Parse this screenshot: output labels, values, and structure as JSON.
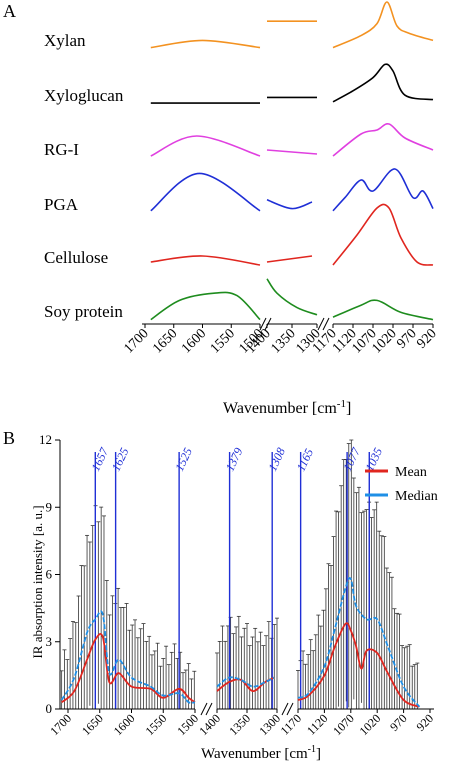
{
  "panel_a": {
    "label": "A",
    "xlabel": "Wavenumber [cm",
    "xlabel_sup": "-1",
    "xlabel_end": "]",
    "ticks_seg1": [
      "1700",
      "1650",
      "1600",
      "1550",
      "1500"
    ],
    "ticks_seg2": [
      "1400",
      "1350",
      "1300"
    ],
    "ticks_seg3": [
      "1170",
      "1120",
      "1070",
      "1020",
      "970",
      "920"
    ]
  },
  "panel_b": {
    "label": "B",
    "xlabel": "Wavenumber [cm",
    "xlabel_sup": "-1",
    "xlabel_end": "]",
    "ylabel": "IR absorption intensity [a. u.]",
    "yticks": [
      "0",
      "3",
      "6",
      "9",
      "12"
    ],
    "ticks_seg1": [
      "1700",
      "1650",
      "1600",
      "1550",
      "1500"
    ],
    "ticks_seg2": [
      "1400",
      "1350",
      "1300"
    ],
    "ticks_seg3": [
      "1170",
      "1120",
      "1070",
      "1020",
      "970",
      "920"
    ],
    "peak_labels": [
      "1657",
      "1625",
      "1525",
      "1379",
      "1308",
      "1165",
      "1077",
      "1035"
    ],
    "legend": [
      "Mean",
      "Median"
    ]
  },
  "colors": {
    "xylan": "#f39221",
    "xyloglucan": "#000000",
    "rg1": "#e040e0",
    "pga": "#1f2fd6",
    "cellulose": "#e0261f",
    "soy": "#1e8c1e",
    "mean": "#e0261f",
    "median": "#1f8fe6",
    "peak_line": "#1f2fd6"
  },
  "chart_data": [
    {
      "type": "line",
      "title": "",
      "xlabel": "Wavenumber [cm-1]",
      "ylabel": "",
      "x_segments": [
        [
          1700,
          1500
        ],
        [
          1400,
          1300
        ],
        [
          1170,
          920
        ]
      ],
      "series": [
        {
          "name": "Xylan",
          "points": [
            [
              1690,
              0.05
            ],
            [
              1600,
              0.2
            ],
            [
              1500,
              0.05
            ],
            [
              1400,
              0.6
            ],
            [
              1300,
              0.6
            ],
            [
              1170,
              0.05
            ],
            [
              1100,
              0.3
            ],
            [
              1060,
              0.55
            ],
            [
              1035,
              1.0
            ],
            [
              1010,
              0.5
            ],
            [
              980,
              0.35
            ],
            [
              920,
              0.2
            ]
          ]
        },
        {
          "name": "Xyloglucan",
          "points": [
            [
              1690,
              0.02
            ],
            [
              1600,
              0.02
            ],
            [
              1500,
              0.02
            ],
            [
              1400,
              0.15
            ],
            [
              1300,
              0.15
            ],
            [
              1170,
              0.05
            ],
            [
              1120,
              0.3
            ],
            [
              1070,
              0.6
            ],
            [
              1040,
              0.9
            ],
            [
              1020,
              0.75
            ],
            [
              990,
              0.2
            ],
            [
              920,
              0.1
            ]
          ]
        },
        {
          "name": "RG-I",
          "points": [
            [
              1690,
              0.05
            ],
            [
              1610,
              0.55
            ],
            [
              1500,
              0.05
            ],
            [
              1400,
              0.2
            ],
            [
              1300,
              0.1
            ],
            [
              1170,
              0.05
            ],
            [
              1100,
              0.6
            ],
            [
              1060,
              0.7
            ],
            [
              1030,
              0.85
            ],
            [
              990,
              0.5
            ],
            [
              920,
              0.2
            ]
          ]
        },
        {
          "name": "PGA",
          "points": [
            [
              1690,
              0.05
            ],
            [
              1605,
              0.9
            ],
            [
              1500,
              0.05
            ],
            [
              1400,
              0.3
            ],
            [
              1350,
              0.1
            ],
            [
              1310,
              0.25
            ],
            [
              1170,
              0.05
            ],
            [
              1140,
              0.35
            ],
            [
              1100,
              0.75
            ],
            [
              1070,
              0.5
            ],
            [
              1015,
              1.0
            ],
            [
              970,
              0.35
            ],
            [
              945,
              0.5
            ],
            [
              920,
              0.1
            ]
          ]
        },
        {
          "name": "Cellulose",
          "points": [
            [
              1690,
              0.1
            ],
            [
              1600,
              0.2
            ],
            [
              1500,
              0.05
            ],
            [
              1400,
              0.1
            ],
            [
              1310,
              0.2
            ],
            [
              1170,
              0.05
            ],
            [
              1110,
              0.55
            ],
            [
              1060,
              1.0
            ],
            [
              1030,
              1.0
            ],
            [
              1000,
              0.5
            ],
            [
              960,
              0.1
            ],
            [
              920,
              0.05
            ]
          ]
        },
        {
          "name": "Soy protein",
          "points": [
            [
              1690,
              0.05
            ],
            [
              1640,
              0.45
            ],
            [
              1580,
              0.6
            ],
            [
              1540,
              0.55
            ],
            [
              1500,
              0.05
            ],
            [
              1400,
              0.9
            ],
            [
              1380,
              0.6
            ],
            [
              1340,
              0.3
            ],
            [
              1300,
              0.15
            ],
            [
              1170,
              0.1
            ],
            [
              1100,
              0.35
            ],
            [
              1060,
              0.45
            ],
            [
              1000,
              0.2
            ],
            [
              920,
              0.05
            ]
          ]
        }
      ]
    },
    {
      "type": "line",
      "title": "",
      "xlabel": "Wavenumber [cm-1]",
      "ylabel": "IR absorption intensity [a. u.]",
      "ylim": [
        0,
        12
      ],
      "x_segments": [
        [
          1700,
          1500
        ],
        [
          1400,
          1300
        ],
        [
          1170,
          920
        ]
      ],
      "peak_lines": [
        1657,
        1625,
        1525,
        1379,
        1308,
        1165,
        1077,
        1035
      ],
      "series": [
        {
          "name": "Mean",
          "points": [
            [
              1710,
              0.3
            ],
            [
              1690,
              0.8
            ],
            [
              1670,
              2.2
            ],
            [
              1657,
              3.1
            ],
            [
              1645,
              3.2
            ],
            [
              1635,
              1.2
            ],
            [
              1620,
              1.6
            ],
            [
              1600,
              1.0
            ],
            [
              1570,
              0.9
            ],
            [
              1550,
              0.5
            ],
            [
              1525,
              0.9
            ],
            [
              1510,
              0.5
            ],
            [
              1500,
              0.3
            ],
            [
              1400,
              0.8
            ],
            [
              1380,
              1.2
            ],
            [
              1360,
              1.3
            ],
            [
              1340,
              0.8
            ],
            [
              1320,
              1.2
            ],
            [
              1305,
              1.4
            ],
            [
              1170,
              0.4
            ],
            [
              1150,
              0.6
            ],
            [
              1120,
              1.5
            ],
            [
              1100,
              2.8
            ],
            [
              1080,
              3.8
            ],
            [
              1070,
              3.5
            ],
            [
              1060,
              2.8
            ],
            [
              1050,
              1.8
            ],
            [
              1040,
              2.6
            ],
            [
              1020,
              2.5
            ],
            [
              1000,
              1.6
            ],
            [
              970,
              0.4
            ],
            [
              940,
              0.1
            ]
          ]
        },
        {
          "name": "Median",
          "points": [
            [
              1710,
              0.4
            ],
            [
              1690,
              1.4
            ],
            [
              1670,
              3.4
            ],
            [
              1657,
              4.0
            ],
            [
              1645,
              4.2
            ],
            [
              1635,
              1.6
            ],
            [
              1620,
              2.2
            ],
            [
              1600,
              1.4
            ],
            [
              1570,
              1.0
            ],
            [
              1550,
              0.6
            ],
            [
              1525,
              0.7
            ],
            [
              1510,
              0.3
            ],
            [
              1500,
              0.3
            ],
            [
              1400,
              1.0
            ],
            [
              1380,
              1.4
            ],
            [
              1360,
              1.3
            ],
            [
              1340,
              1.0
            ],
            [
              1320,
              1.2
            ],
            [
              1305,
              1.4
            ],
            [
              1170,
              0.5
            ],
            [
              1150,
              0.7
            ],
            [
              1120,
              1.9
            ],
            [
              1100,
              3.6
            ],
            [
              1080,
              5.4
            ],
            [
              1070,
              5.8
            ],
            [
              1060,
              4.6
            ],
            [
              1040,
              4.0
            ],
            [
              1020,
              4.0
            ],
            [
              1000,
              2.8
            ],
            [
              970,
              1.0
            ],
            [
              940,
              0.1
            ]
          ]
        }
      ]
    }
  ]
}
